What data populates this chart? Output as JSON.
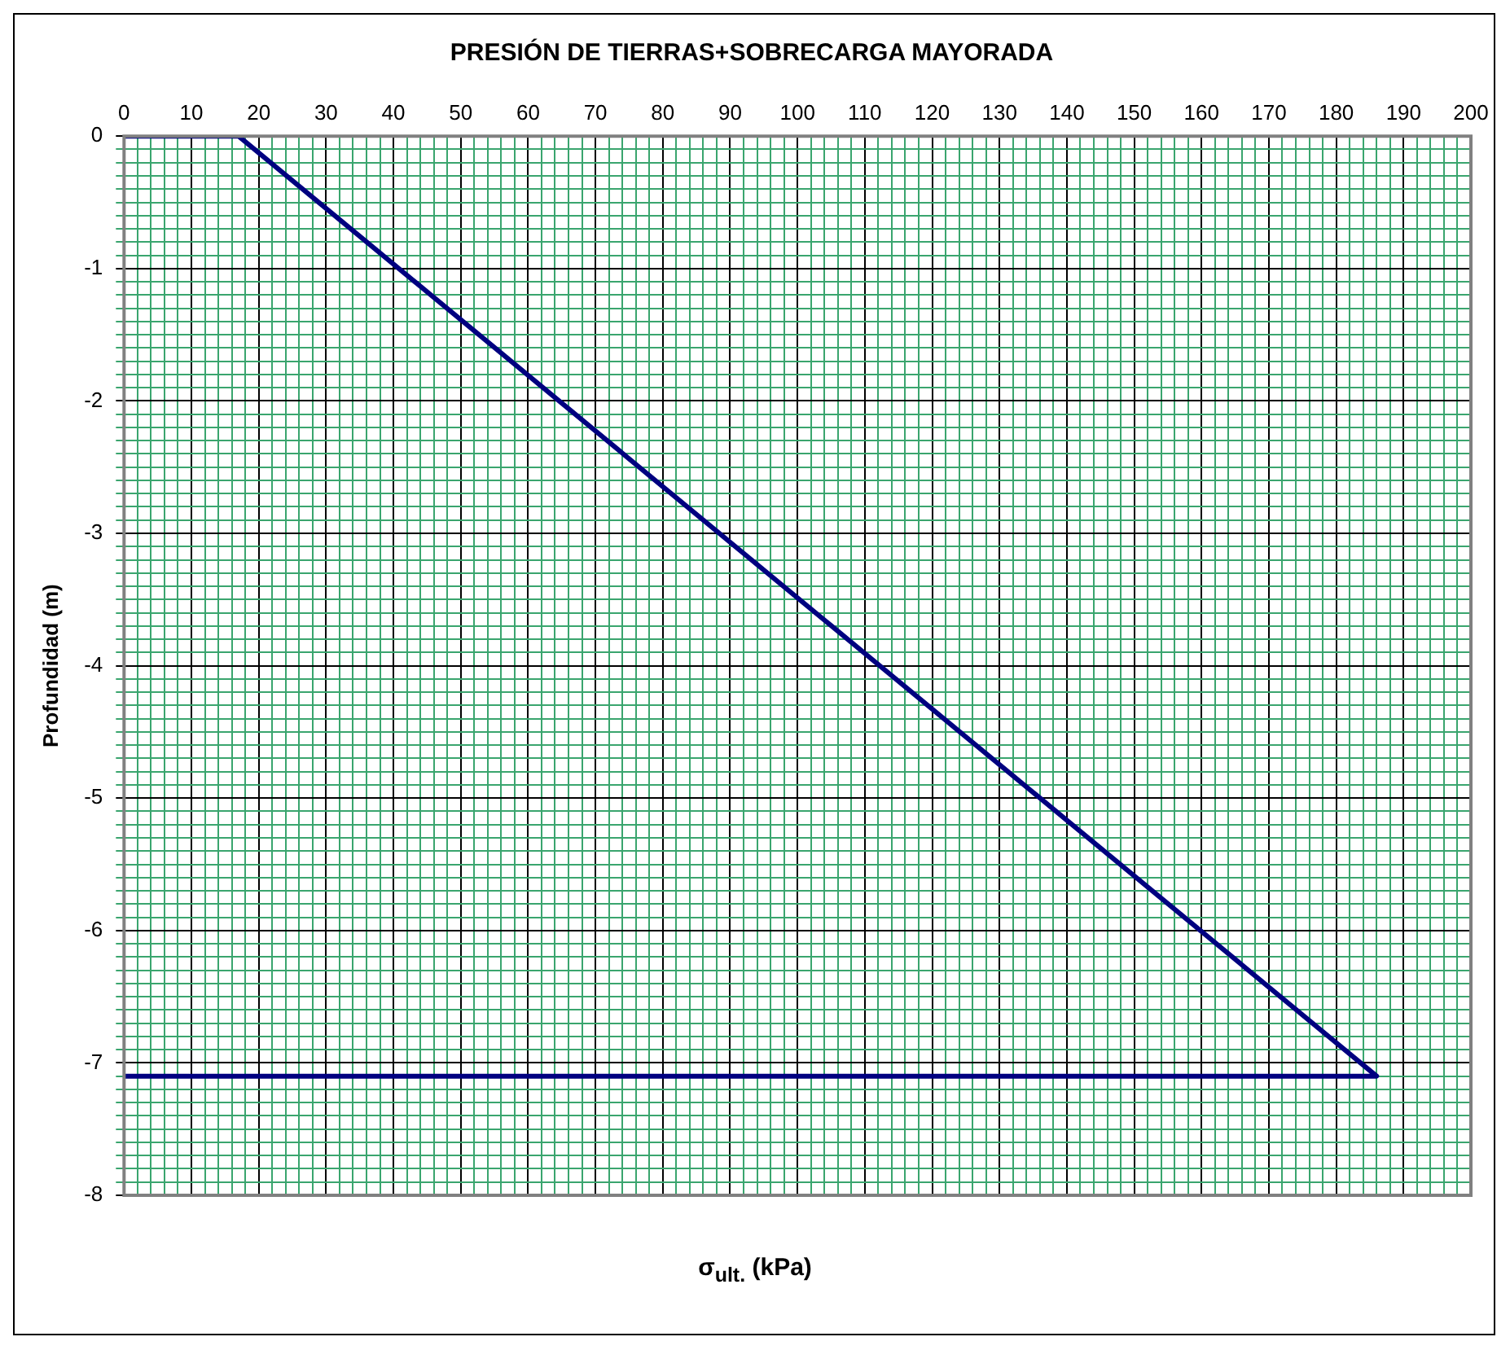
{
  "chart_data": {
    "type": "line",
    "title": "PRESIÓN DE TIERRAS+SOBRECARGA MAYORADA",
    "xlabel": "σ$_{ult.}$ (kPa)",
    "ylabel": "Profundidad (m)",
    "series": [
      {
        "color": "#000080",
        "x": [
          0,
          17,
          186,
          0
        ],
        "values": [
          0,
          0,
          -7.1,
          -7.1
        ]
      }
    ],
    "xlim": [
      0,
      200
    ],
    "xticks": [
      0,
      {
        "value": 2,
        "label": null
      },
      {
        "value": 4,
        "label": null
      },
      {
        "value": 6,
        "label": null
      },
      {
        "value": 8,
        "label": null
      },
      10,
      {
        "value": 12,
        "label": null
      },
      {
        "value": 14,
        "label": null
      },
      {
        "value": 16,
        "label": null
      },
      {
        "value": 18,
        "label": null
      },
      20,
      {
        "value": 22,
        "label": null
      },
      {
        "value": 24,
        "label": null
      },
      {
        "value": 26,
        "label": null
      },
      {
        "value": 28,
        "label": null
      },
      30,
      {
        "value": 32,
        "label": null
      },
      {
        "value": 34,
        "label": null
      },
      {
        "value": 36,
        "label": null
      },
      {
        "value": 38,
        "label": null
      },
      40,
      {
        "value": 42,
        "label": null
      },
      {
        "value": 44,
        "label": null
      },
      {
        "value": 46,
        "label": null
      },
      {
        "value": 48,
        "label": null
      },
      50,
      {
        "value": 52,
        "label": null
      },
      {
        "value": 54,
        "label": null
      },
      {
        "value": 56,
        "label": null
      },
      {
        "value": 58,
        "label": null
      },
      60,
      {
        "value": 62,
        "label": null
      },
      {
        "value": 64,
        "label": null
      },
      {
        "value": 66,
        "label": null
      },
      {
        "value": 68,
        "label": null
      },
      70,
      {
        "value": 72,
        "label": null
      },
      {
        "value": 74,
        "label": null
      },
      {
        "value": 76,
        "label": null
      },
      {
        "value": 78,
        "label": null
      },
      80,
      {
        "value": 82,
        "label": null
      },
      {
        "value": 84,
        "label": null
      },
      {
        "value": 86,
        "label": null
      },
      {
        "value": 88,
        "label": null
      },
      90,
      {
        "value": 92,
        "label": null
      },
      {
        "value": 94,
        "label": null
      },
      {
        "value": 96,
        "label": null
      },
      {
        "value": 98,
        "label": null
      },
      100,
      {
        "value": 102,
        "label": null
      },
      {
        "value": 104,
        "label": null
      },
      {
        "value": 106,
        "label": null
      },
      {
        "value": 108,
        "label": null
      },
      110,
      {
        "value": 112,
        "label": null
      },
      {
        "value": 114,
        "label": null
      },
      {
        "value": 116,
        "label": null
      },
      {
        "value": 118,
        "label": null
      },
      120,
      {
        "value": 122,
        "label": null
      },
      {
        "value": 124,
        "label": null
      },
      {
        "value": 126,
        "label": null
      },
      {
        "value": 128,
        "label": null
      },
      130,
      {
        "value": 132,
        "label": null
      },
      {
        "value": 134,
        "label": null
      },
      {
        "value": 136,
        "label": null
      },
      {
        "value": 138,
        "label": null
      },
      140,
      {
        "value": 142,
        "label": null
      },
      {
        "value": 144,
        "label": null
      },
      {
        "value": 146,
        "label": null
      },
      {
        "value": 148,
        "label": null
      },
      150,
      {
        "value": 152,
        "label": null
      },
      {
        "value": 154,
        "label": null
      },
      {
        "value": 156,
        "label": null
      },
      {
        "value": 158,
        "label": null
      },
      160,
      {
        "value": 162,
        "label": null
      },
      {
        "value": 164,
        "label": null
      },
      {
        "value": 166,
        "label": null
      },
      {
        "value": 168,
        "label": null
      },
      170,
      {
        "value": 172,
        "label": null
      },
      {
        "value": 174,
        "label": null
      },
      {
        "value": 176,
        "label": null
      },
      {
        "value": 178,
        "label": null
      },
      180,
      {
        "value": 182,
        "label": null
      },
      {
        "value": 184,
        "label": null
      },
      {
        "value": 186,
        "label": null
      },
      {
        "value": 188,
        "label": null
      },
      190,
      {
        "value": 192,
        "label": null
      },
      {
        "value": 194,
        "label": null
      },
      {
        "value": 196,
        "label": null
      },
      {
        "value": 198,
        "label": null
      },
      200
    ],
    "ylim": [
      -8,
      0
    ],
    "yticks": [
      -8,
      {
        "value": -7.9,
        "label": null
      },
      {
        "value": -7.8,
        "label": null
      },
      {
        "value": -7.7,
        "label": null
      },
      {
        "value": -7.6,
        "label": null
      },
      {
        "value": -7.5,
        "label": null
      },
      {
        "value": -7.4,
        "label": null
      },
      {
        "value": -7.3,
        "label": null
      },
      {
        "value": -7.2,
        "label": null
      },
      {
        "value": -7.1,
        "label": null
      },
      -7,
      {
        "value": -6.9,
        "label": null
      },
      {
        "value": -6.8,
        "label": null
      },
      {
        "value": -6.7,
        "label": null
      },
      {
        "value": -6.6,
        "label": null
      },
      {
        "value": -6.5,
        "label": null
      },
      {
        "value": -6.4,
        "label": null
      },
      {
        "value": -6.3,
        "label": null
      },
      {
        "value": -6.2,
        "label": null
      },
      {
        "value": -6.1,
        "label": null
      },
      -6,
      {
        "value": -5.9,
        "label": null
      },
      {
        "value": -5.8,
        "label": null
      },
      {
        "value": -5.7,
        "label": null
      },
      {
        "value": -5.6,
        "label": null
      },
      {
        "value": -5.5,
        "label": null
      },
      {
        "value": -5.4,
        "label": null
      },
      {
        "value": -5.3,
        "label": null
      },
      {
        "value": -5.2,
        "label": null
      },
      {
        "value": -5.1,
        "label": null
      },
      -5,
      {
        "value": -4.9,
        "label": null
      },
      {
        "value": -4.8,
        "label": null
      },
      {
        "value": -4.7,
        "label": null
      },
      {
        "value": -4.6,
        "label": null
      },
      {
        "value": -4.5,
        "label": null
      },
      {
        "value": -4.4,
        "label": null
      },
      {
        "value": -4.3,
        "label": null
      },
      {
        "value": -4.2,
        "label": null
      },
      {
        "value": -4.1,
        "label": null
      },
      -4,
      {
        "value": -3.9,
        "label": null
      },
      {
        "value": -3.8,
        "label": null
      },
      {
        "value": -3.7,
        "label": null
      },
      {
        "value": -3.6,
        "label": null
      },
      {
        "value": -3.5,
        "label": null
      },
      {
        "value": -3.4,
        "label": null
      },
      {
        "value": -3.3,
        "label": null
      },
      {
        "value": -3.2,
        "label": null
      },
      {
        "value": -3.1,
        "label": null
      },
      -3,
      {
        "value": -2.9,
        "label": null
      },
      {
        "value": -2.8,
        "label": null
      },
      {
        "value": -2.7,
        "label": null
      },
      {
        "value": -2.6,
        "label": null
      },
      {
        "value": -2.5,
        "label": null
      },
      {
        "value": -2.4,
        "label": null
      },
      {
        "value": -2.3,
        "label": null
      },
      {
        "value": -2.2,
        "label": null
      },
      {
        "value": -2.1,
        "label": null
      },
      -2,
      {
        "value": -1.9,
        "label": null
      },
      {
        "value": -1.8,
        "label": null
      },
      {
        "value": -1.7,
        "label": null
      },
      {
        "value": -1.6,
        "label": null
      },
      {
        "value": -1.5,
        "label": null
      },
      {
        "value": -1.4,
        "label": null
      },
      {
        "value": -1.3,
        "label": null
      },
      {
        "value": -1.2,
        "label": null
      },
      {
        "value": -1.1,
        "label": null
      },
      -1,
      {
        "value": -0.9,
        "label": null
      },
      {
        "value": -0.8,
        "label": null
      },
      {
        "value": -0.7,
        "label": null
      },
      {
        "value": -0.6,
        "label": null
      },
      {
        "value": -0.5,
        "label": null
      },
      {
        "value": -0.4,
        "label": null
      },
      {
        "value": -0.3,
        "label": null
      },
      {
        "value": -0.2,
        "label": null
      },
      {
        "value": -0.1,
        "label": null
      },
      0
    ],
    "grid": true,
    "legend": false,
    "marker": "none",
    "line_style": "solid"
  }
}
